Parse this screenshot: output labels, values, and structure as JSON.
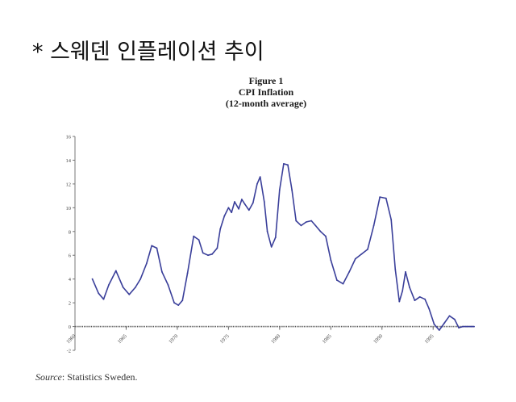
{
  "heading": "* 스웨덴 인플레이션 추이",
  "chart_data": {
    "type": "line",
    "figure_label": "Figure 1",
    "title": "CPI Inflation",
    "subtitle": "(12-month average)",
    "xlabel": "",
    "ylabel": "",
    "xlim": [
      1960,
      1999
    ],
    "ylim": [
      -2,
      16
    ],
    "x_ticks": [
      "1960",
      "1965",
      "1970",
      "1975",
      "1980",
      "1985",
      "1990",
      "1995"
    ],
    "y_ticks": [
      "-2",
      "0",
      "2",
      "4",
      "6",
      "8",
      "10",
      "12",
      "14",
      "16"
    ],
    "grid": false,
    "series": [
      {
        "name": "CPI Inflation",
        "color": "#3a3f9a",
        "x": [
          1961.7,
          1962.3,
          1962.8,
          1963.3,
          1964.0,
          1964.7,
          1965.3,
          1965.9,
          1966.4,
          1967.0,
          1967.5,
          1968.0,
          1968.5,
          1969.1,
          1969.7,
          1970.1,
          1970.5,
          1971.0,
          1971.6,
          1972.1,
          1972.5,
          1973.0,
          1973.4,
          1973.9,
          1974.2,
          1974.6,
          1975.0,
          1975.3,
          1975.6,
          1976.0,
          1976.3,
          1976.6,
          1977.0,
          1977.4,
          1977.8,
          1978.1,
          1978.5,
          1978.8,
          1979.2,
          1979.6,
          1980.0,
          1980.4,
          1980.8,
          1981.2,
          1981.6,
          1982.1,
          1982.6,
          1983.1,
          1983.5,
          1984.0,
          1984.5,
          1985.0,
          1985.6,
          1986.2,
          1986.8,
          1987.4,
          1988.0,
          1988.6,
          1989.2,
          1989.8,
          1990.4,
          1990.9,
          1991.3,
          1991.7,
          1992.0,
          1992.3,
          1992.7,
          1993.2,
          1993.7,
          1994.2,
          1994.6,
          1995.1,
          1995.6,
          1996.1,
          1996.6,
          1997.1,
          1997.5,
          1997.9,
          1998.3,
          1998.7,
          1999.0
        ],
        "values": [
          4.0,
          2.8,
          2.3,
          3.5,
          4.7,
          3.3,
          2.7,
          3.3,
          4.0,
          5.3,
          6.8,
          6.6,
          4.6,
          3.5,
          2.0,
          1.8,
          2.2,
          4.5,
          7.6,
          7.3,
          6.2,
          6.0,
          6.1,
          6.6,
          8.2,
          9.3,
          10.0,
          9.6,
          10.5,
          9.9,
          10.7,
          10.3,
          9.8,
          10.4,
          12.0,
          12.6,
          10.5,
          8.0,
          6.7,
          7.5,
          11.5,
          13.7,
          13.6,
          11.5,
          8.9,
          8.5,
          8.8,
          8.9,
          8.5,
          8.0,
          7.6,
          5.6,
          3.9,
          3.6,
          4.6,
          5.7,
          6.1,
          6.5,
          8.5,
          10.9,
          10.8,
          9.0,
          4.8,
          2.1,
          3.0,
          4.6,
          3.3,
          2.2,
          2.5,
          2.3,
          1.5,
          0.2,
          -0.3,
          0.3,
          0.9,
          0.6,
          -0.1,
          0.0,
          0.0,
          0.0,
          0.0
        ]
      }
    ]
  },
  "source": {
    "label": "Source",
    "text": ": Statistics Sweden."
  }
}
